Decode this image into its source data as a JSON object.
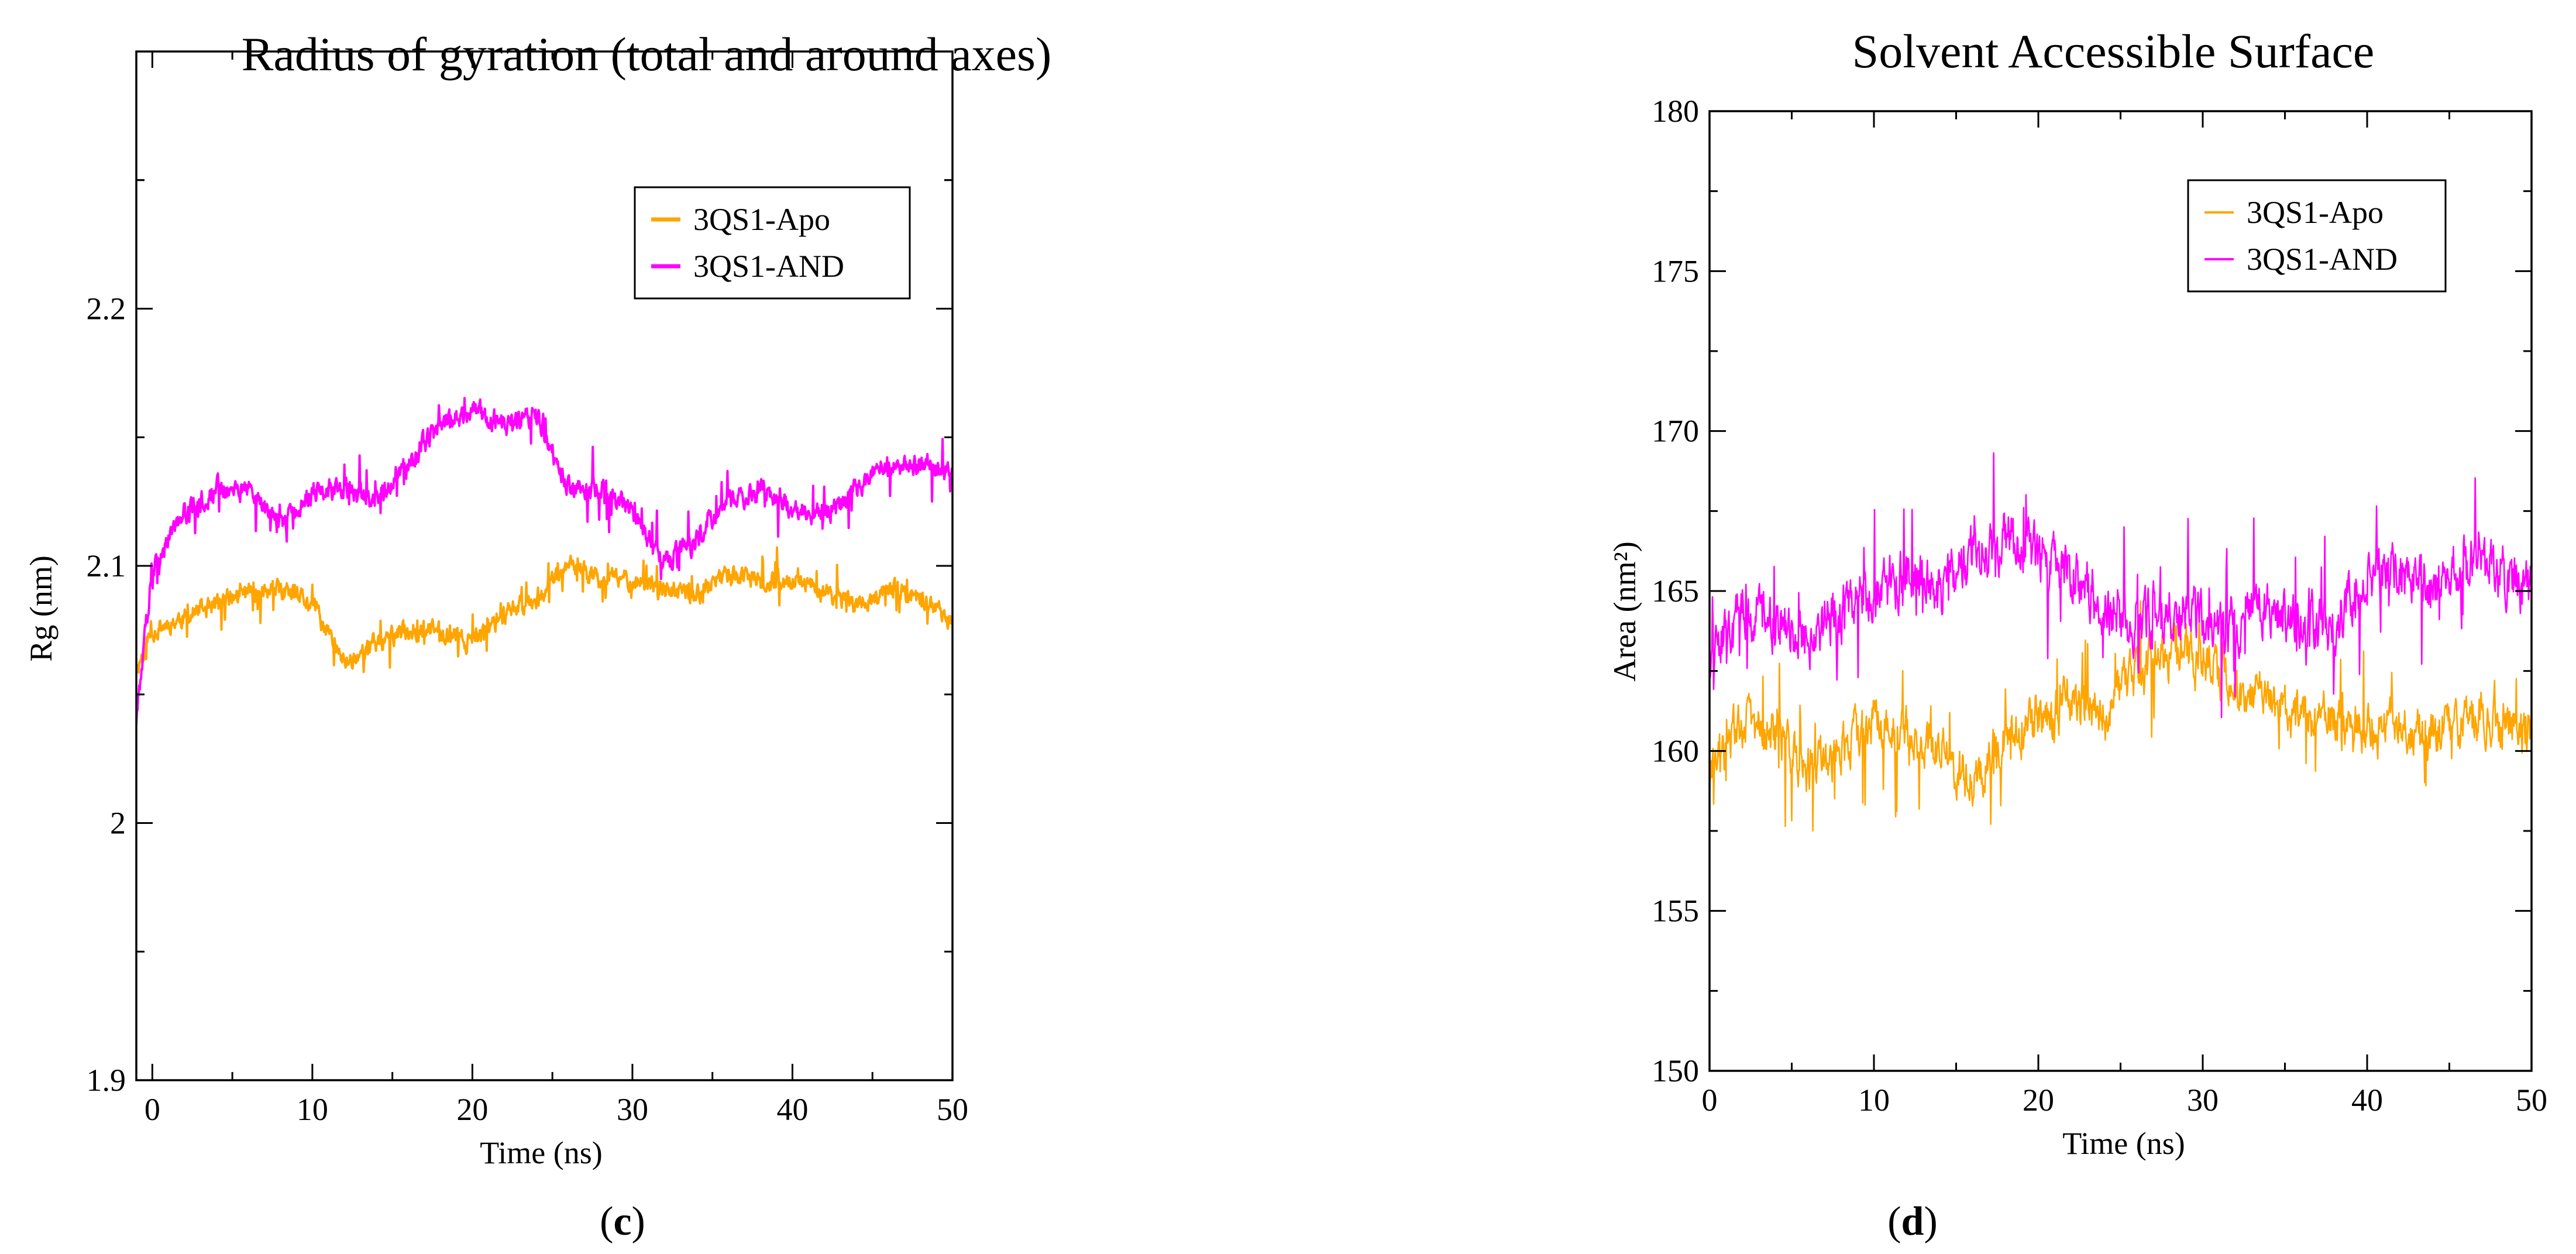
{
  "chart_data": [
    {
      "type": "line",
      "title": "Radius of gyration (total and around axes)",
      "xlabel": "Time (ns)",
      "ylabel": "Rg (nm)",
      "xlim": [
        -1,
        50
      ],
      "ylim": [
        1.9,
        2.3
      ],
      "xticks": [
        0,
        10,
        20,
        30,
        40,
        50
      ],
      "xtick_labels": [
        "0",
        "10",
        "20",
        "30",
        "40",
        "50"
      ],
      "yticks": [
        1.9,
        2.0,
        2.1,
        2.2
      ],
      "ytick_labels": [
        "1.9",
        "2",
        "2.1",
        "2.2"
      ],
      "legend_position": "top-right",
      "panel_label": "c",
      "noise_scale": 0.03,
      "series": [
        {
          "name": "3QS1-Apo",
          "color": "#ffa500",
          "x": [
            -1,
            0,
            2,
            4,
            6,
            8,
            10,
            12,
            14,
            16,
            18,
            20,
            22,
            24,
            26,
            28,
            30,
            32,
            34,
            36,
            38,
            40,
            42,
            44,
            46,
            48,
            50
          ],
          "values": [
            2.06,
            2.075,
            2.08,
            2.085,
            2.09,
            2.09,
            2.085,
            2.062,
            2.07,
            2.075,
            2.075,
            2.07,
            2.082,
            2.088,
            2.1,
            2.095,
            2.095,
            2.09,
            2.088,
            2.098,
            2.093,
            2.094,
            2.09,
            2.085,
            2.09,
            2.088,
            2.078
          ]
        },
        {
          "name": "3QS1-AND",
          "color": "#ff00ff",
          "x": [
            -1,
            0,
            2,
            4,
            6,
            8,
            10,
            12,
            14,
            16,
            18,
            20,
            22,
            24,
            26,
            28,
            30,
            32,
            34,
            36,
            38,
            40,
            42,
            44,
            46,
            48,
            50
          ],
          "values": [
            2.04,
            2.1,
            2.12,
            2.13,
            2.13,
            2.115,
            2.13,
            2.13,
            2.125,
            2.14,
            2.155,
            2.16,
            2.155,
            2.158,
            2.13,
            2.13,
            2.12,
            2.1,
            2.11,
            2.125,
            2.13,
            2.122,
            2.12,
            2.13,
            2.14,
            2.14,
            2.135
          ]
        }
      ]
    },
    {
      "type": "line",
      "title": "Solvent Accessible Surface",
      "xlabel": "Time (ns)",
      "ylabel": "Area (nm²)",
      "xlim": [
        0,
        50
      ],
      "ylim": [
        150,
        180
      ],
      "xticks": [
        0,
        10,
        20,
        30,
        40,
        50
      ],
      "xtick_labels": [
        "0",
        "10",
        "20",
        "30",
        "40",
        "50"
      ],
      "yticks": [
        150,
        155,
        160,
        165,
        170,
        175,
        180
      ],
      "ytick_labels": [
        "150",
        "155",
        "160",
        "165",
        "170",
        "175",
        "180"
      ],
      "legend_position": "top-right",
      "panel_label": "d",
      "noise_scale": 5.0,
      "series": [
        {
          "name": "3QS1-Apo",
          "color": "#ffa500",
          "x": [
            0,
            2,
            4,
            6,
            8,
            10,
            12,
            14,
            16,
            18,
            20,
            22,
            24,
            26,
            28,
            30,
            32,
            34,
            36,
            38,
            40,
            42,
            44,
            46,
            48,
            50
          ],
          "values": [
            159,
            161,
            160.5,
            159.5,
            160,
            161,
            160.5,
            160,
            159,
            160.5,
            161,
            161.5,
            161,
            162.5,
            163,
            163,
            162,
            161.5,
            161,
            161,
            160.5,
            161,
            160.5,
            161,
            161,
            160.5
          ]
        },
        {
          "name": "3QS1-AND",
          "color": "#ff00ff",
          "x": [
            0,
            2,
            4,
            6,
            8,
            10,
            12,
            14,
            16,
            18,
            20,
            22,
            24,
            26,
            28,
            30,
            32,
            34,
            36,
            38,
            40,
            42,
            44,
            46,
            48,
            50
          ],
          "values": [
            163,
            164.5,
            164,
            163.5,
            164.5,
            165,
            165.5,
            165,
            166,
            166.5,
            166,
            165.5,
            164.5,
            164,
            164.5,
            164,
            164,
            164.5,
            164,
            164,
            165.5,
            165.5,
            165,
            166,
            165.5,
            165
          ]
        }
      ]
    }
  ]
}
